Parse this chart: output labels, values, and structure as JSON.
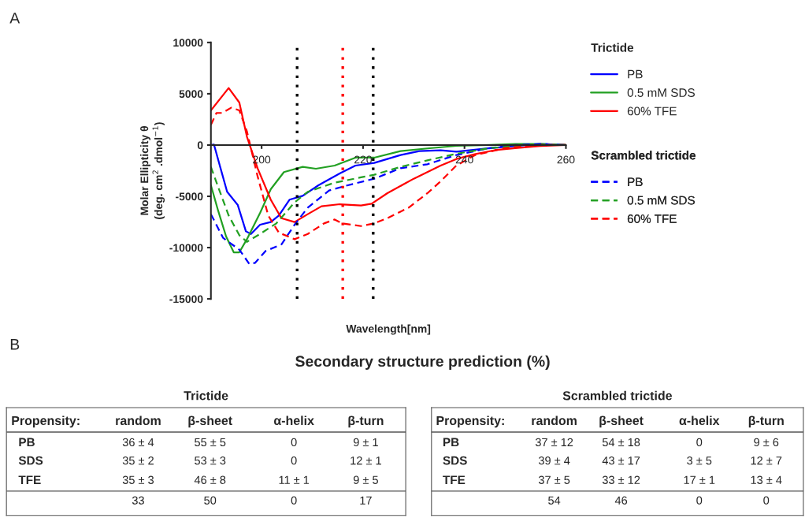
{
  "chart_data": [
    {
      "type": "line",
      "xlabel": "Wavelength[nm]",
      "ylabel": "Molar Ellipticity θ\n(deg. cm$^{2}$ .dmol$^{−1}$)",
      "legend_title": "Trictide",
      "annotations": [
        "A",
        "Scrambled trictide"
      ],
      "xlim": [
        190,
        260
      ],
      "xticks": [
        200,
        220,
        240,
        260
      ],
      "ylim": [
        -15000,
        10000
      ],
      "yticks": [
        10000,
        5000,
        0,
        -5000,
        -10000,
        -15000
      ],
      "grid": false,
      "legend": "right",
      "marker": "none",
      "ref_lines": [
        {
          "axis": "x",
          "value": 207,
          "color": "#000000",
          "line_style": "dotted"
        },
        {
          "axis": "x",
          "value": 216,
          "color": "#ff0000",
          "line_style": "dotted"
        },
        {
          "axis": "x",
          "value": 222,
          "color": "#000000",
          "line_style": "dotted"
        }
      ],
      "series": [
        {
          "name": "PB",
          "color": "#0000ff",
          "line_style": "solid",
          "x": [
            190,
            190.6,
            191.9,
            193.2,
            195.3,
            196.9,
            197.9,
            199.7,
            201.8,
            203.4,
            205.5,
            208.1,
            211.2,
            215.4,
            218.5,
            222.2,
            227.4,
            231.1,
            235.3,
            238.4,
            245,
            250,
            255,
            260
          ],
          "values": [
            0,
            50,
            -2260,
            -4560,
            -5850,
            -8410,
            -8670,
            -7770,
            -7510,
            -6870,
            -5330,
            -4950,
            -3920,
            -2770,
            -2000,
            -1740,
            -970,
            -590,
            -510,
            -640,
            -300,
            -100,
            100,
            0
          ]
        },
        {
          "name": "0.5 mM SDS",
          "color": "#22a022",
          "line_style": "solid",
          "x": [
            190,
            191.4,
            193,
            194.5,
            195.6,
            197.1,
            199.7,
            201.8,
            204.4,
            208.1,
            210.7,
            214.4,
            218.5,
            222.2,
            227.4,
            232.7,
            238.4,
            245,
            250,
            255,
            260
          ],
          "values": [
            -3920,
            -6360,
            -8920,
            -10460,
            -10460,
            -9180,
            -6620,
            -4310,
            -2640,
            -2130,
            -2310,
            -2000,
            -1230,
            -1230,
            -590,
            -330,
            -80,
            0,
            100,
            100,
            0
          ]
        },
        {
          "name": "60% TFE",
          "color": "#ff0000",
          "line_style": "solid",
          "x": [
            190,
            193.5,
            195.6,
            197.1,
            199.2,
            201.8,
            203.9,
            206.5,
            209.1,
            211.8,
            215.4,
            219.6,
            221.7,
            224.8,
            230,
            235.3,
            238.4,
            242,
            246,
            250,
            255,
            260
          ],
          "values": [
            3380,
            5560,
            4150,
            820,
            -2260,
            -5330,
            -7130,
            -7510,
            -6740,
            -5970,
            -5770,
            -5900,
            -5720,
            -4690,
            -3280,
            -2000,
            -1360,
            -900,
            -500,
            -300,
            -100,
            0
          ]
        },
        {
          "name": "PB",
          "color": "#0000ff",
          "line_style": "dashed",
          "x": [
            190,
            192.4,
            195.6,
            197.6,
            198.7,
            200.8,
            203.9,
            206.5,
            209.1,
            213.3,
            217,
            222.2,
            227.4,
            232.7,
            238.4,
            245,
            250,
            255,
            260
          ],
          "values": [
            -6740,
            -9050,
            -10200,
            -11610,
            -11490,
            -10330,
            -9690,
            -7770,
            -6100,
            -4430,
            -3920,
            -3280,
            -2260,
            -1870,
            -970,
            -300,
            0,
            100,
            0
          ]
        },
        {
          "name": "0.5 mM SDS",
          "color": "#22a022",
          "line_style": "dashed",
          "x": [
            190,
            191.4,
            193.5,
            195.6,
            197.1,
            199.7,
            202.9,
            206.5,
            209.1,
            214.4,
            219.6,
            222.2,
            227.4,
            232.7,
            238.4,
            245,
            250,
            255,
            260
          ],
          "values": [
            -2130,
            -4050,
            -6870,
            -8790,
            -9440,
            -8670,
            -7640,
            -5590,
            -4560,
            -3670,
            -3150,
            -2900,
            -2130,
            -1490,
            -850,
            -300,
            -100,
            0,
            0
          ]
        },
        {
          "name": "60% TFE",
          "color": "#ff0000",
          "line_style": "dashed",
          "x": [
            190,
            191.1,
            192.2,
            194,
            195.6,
            197.1,
            199.2,
            201.3,
            203.4,
            206.5,
            209.1,
            212.3,
            214.4,
            215.9,
            219.6,
            222.2,
            224.8,
            229,
            232.7,
            235.3,
            238.4,
            242,
            248,
            255,
            260
          ],
          "values": [
            1970,
            3130,
            3130,
            3640,
            3380,
            1330,
            -3030,
            -6870,
            -8540,
            -9180,
            -8670,
            -7640,
            -7260,
            -7640,
            -7900,
            -7640,
            -7130,
            -6100,
            -4690,
            -3540,
            -2000,
            -1000,
            -300,
            0,
            0
          ]
        }
      ]
    },
    {
      "type": "other",
      "title": "Secondary structure prediction (%)",
      "annotations": [
        "B"
      ]
    },
    {
      "type": "other",
      "title": "Trictide",
      "annotations": [
        "Propensity:"
      ],
      "categories": [
        "random",
        "β-sheet",
        "α-helix",
        "β-turn"
      ],
      "y_categories": [
        "PB",
        "SDS",
        "TFE",
        null
      ],
      "cell_labels": [
        [
          "36 ± 4",
          "55 ± 5",
          "0",
          "9 ± 1"
        ],
        [
          "35 ± 2",
          "53 ± 3",
          "0",
          "12 ± 1"
        ],
        [
          "35 ± 3",
          "46 ± 8",
          "11 ± 1",
          "9 ± 5"
        ],
        [
          "33",
          "50",
          "0",
          "17"
        ]
      ]
    },
    {
      "type": "other",
      "title": "Scrambled trictide",
      "annotations": [
        "Propensity:"
      ],
      "categories": [
        "random",
        "β-sheet",
        "α-helix",
        "β-turn"
      ],
      "y_categories": [
        "PB",
        "SDS",
        "TFE",
        null
      ],
      "cell_labels": [
        [
          "37 ± 12",
          "54 ± 18",
          "0",
          "9 ± 6"
        ],
        [
          "39 ± 4",
          "43 ± 17",
          "3 ± 5",
          "12 ± 7"
        ],
        [
          "37 ± 5",
          "33 ± 12",
          "17 ± 1",
          "13 ± 4"
        ],
        [
          "54",
          "46",
          "0",
          "0"
        ]
      ]
    }
  ]
}
